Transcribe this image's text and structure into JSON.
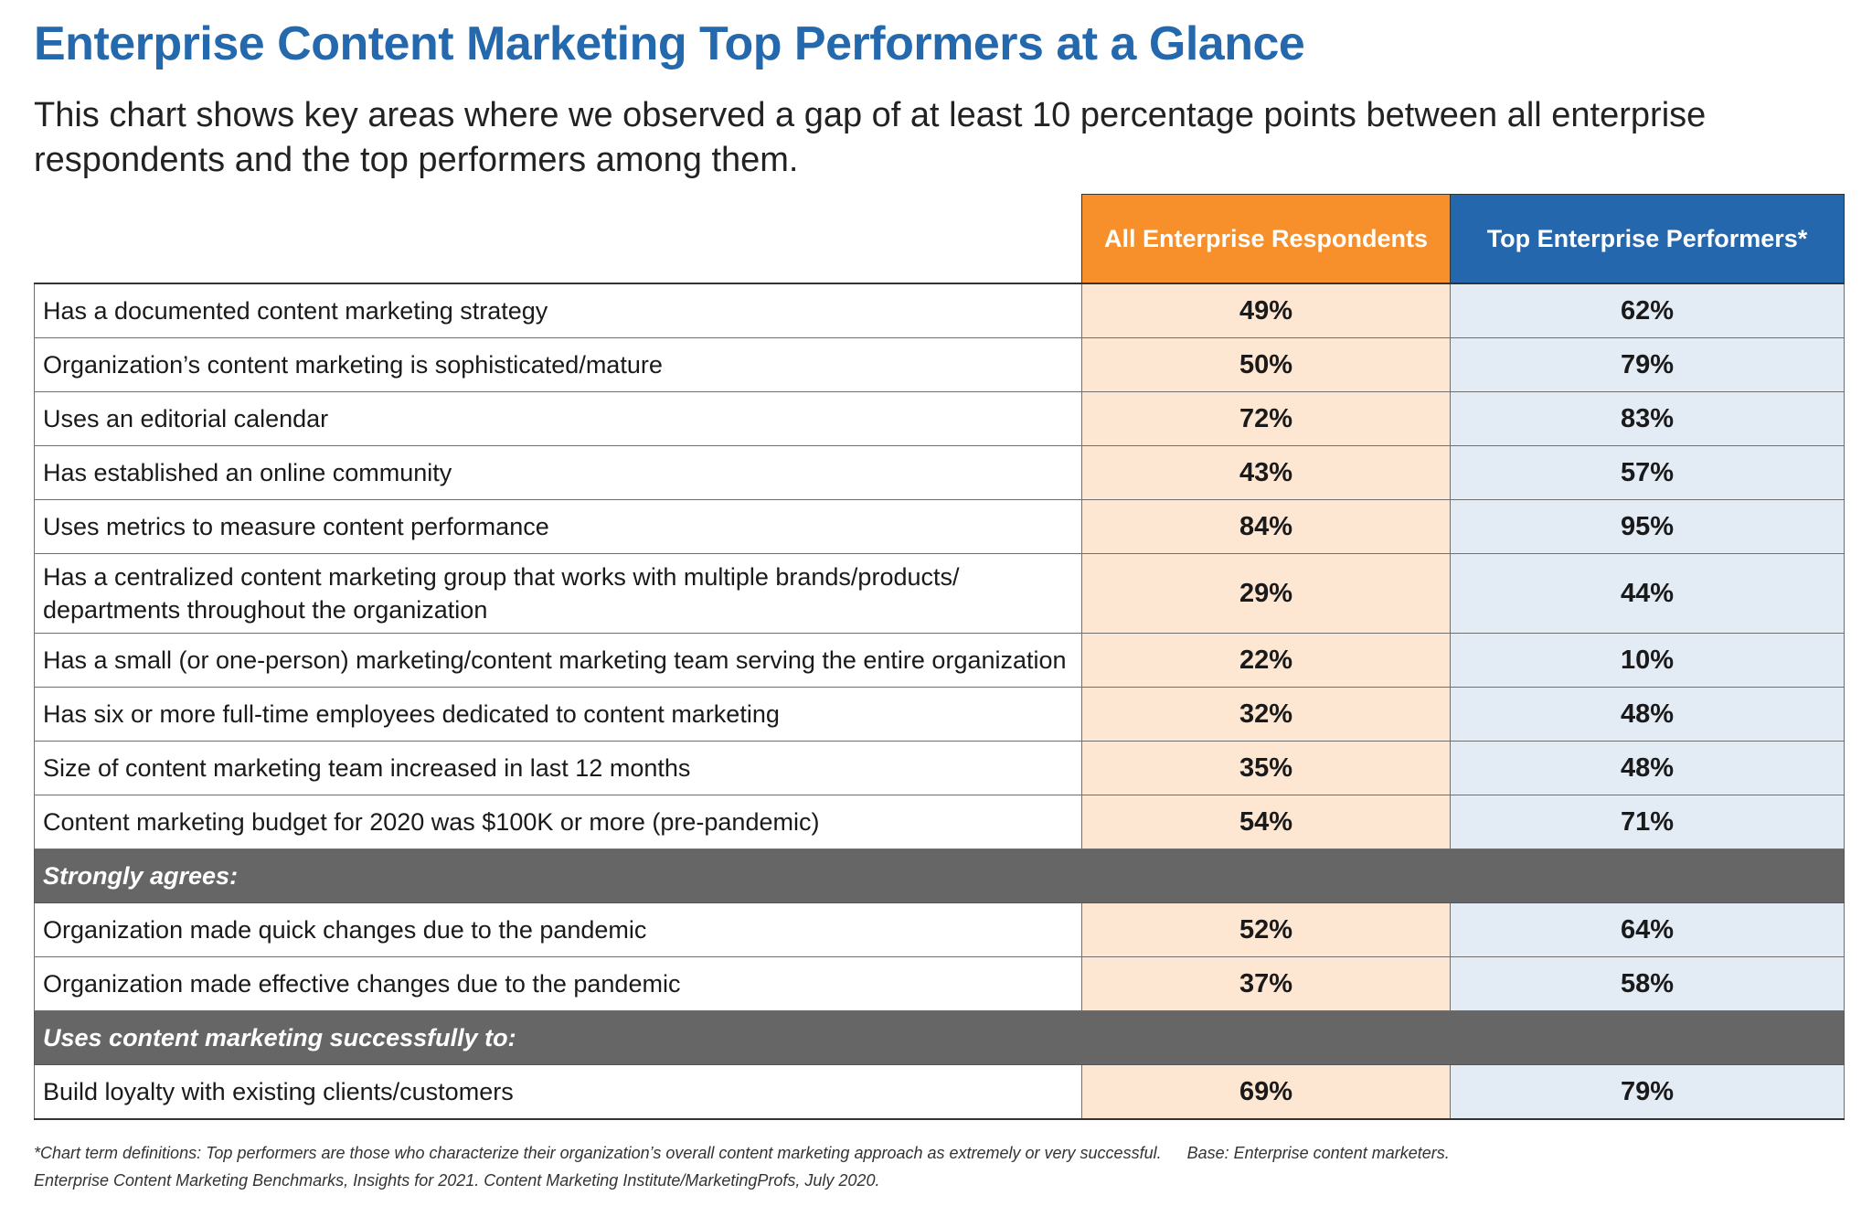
{
  "title": "Enterprise Content Marketing Top Performers at a Glance",
  "subtitle": "This chart shows key areas where we observed a gap of at least 10 percentage points between all enterprise respondents and the top performers among them.",
  "colors": {
    "title": "#2469ad",
    "all_header": "#f7902a",
    "top_header": "#2567ad",
    "all_cell": "#fde6d2",
    "top_cell": "#e3ebf4",
    "section": "#666666"
  },
  "chart_data": {
    "type": "table",
    "columns": [
      "",
      "All Enterprise Respondents",
      "Top Enterprise Performers*"
    ],
    "rows": [
      {
        "label": "Has a documented content marketing strategy",
        "all": "49%",
        "top": "62%"
      },
      {
        "label": "Organization’s content marketing is sophisticated/mature",
        "all": "50%",
        "top": "79%"
      },
      {
        "label": "Uses an editorial calendar",
        "all": "72%",
        "top": "83%"
      },
      {
        "label": "Has established an online community",
        "all": "43%",
        "top": "57%"
      },
      {
        "label": "Uses metrics to measure content performance",
        "all": "84%",
        "top": "95%"
      },
      {
        "label": "Has a centralized content marketing group that works with multiple brands/products/ departments throughout the organization",
        "all": "29%",
        "top": "44%",
        "tall": true
      },
      {
        "label": "Has a small (or one-person) marketing/content marketing team serving the entire organization",
        "all": "22%",
        "top": "10%"
      },
      {
        "label": "Has six or more full-time employees dedicated to content marketing",
        "all": "32%",
        "top": "48%"
      },
      {
        "label": "Size of content marketing team increased in last 12 months",
        "all": "35%",
        "top": "48%"
      },
      {
        "label": "Content marketing budget for 2020 was $100K or more (pre-pandemic)",
        "all": "54%",
        "top": "71%"
      },
      {
        "section": "Strongly agrees:"
      },
      {
        "label": "Organization made quick changes due to the pandemic",
        "all": "52%",
        "top": "64%"
      },
      {
        "label": "Organization made effective changes due to the pandemic",
        "all": "37%",
        "top": "58%"
      },
      {
        "section": "Uses content marketing successfully to:"
      },
      {
        "label": "Build loyalty with existing clients/customers",
        "all": "69%",
        "top": "79%"
      }
    ]
  },
  "footnote": {
    "definitions": "*Chart term definitions: Top performers are those who characterize their organization’s overall content marketing approach as extremely or very successful.",
    "base": "Base: Enterprise content marketers.",
    "source": "Enterprise Content Marketing Benchmarks, Insights for 2021. Content Marketing Institute/MarketingProfs, July 2020."
  }
}
